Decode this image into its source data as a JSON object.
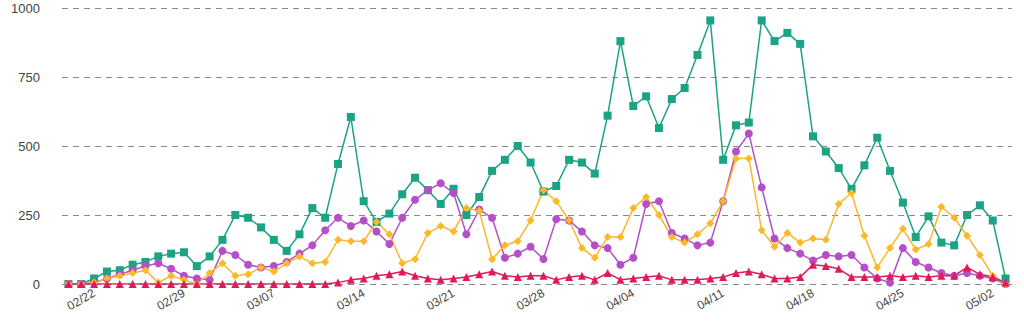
{
  "chart_data": {
    "type": "line",
    "categories": [
      null,
      null,
      "02/22",
      null,
      null,
      null,
      null,
      null,
      null,
      "02/29",
      null,
      null,
      null,
      null,
      null,
      null,
      "03/07",
      null,
      null,
      null,
      null,
      null,
      null,
      "03/14",
      null,
      null,
      null,
      null,
      null,
      null,
      "03/21",
      null,
      null,
      null,
      null,
      null,
      null,
      "03/28",
      null,
      null,
      null,
      null,
      null,
      null,
      "04/04",
      null,
      null,
      null,
      null,
      null,
      null,
      "04/11",
      null,
      null,
      null,
      null,
      null,
      null,
      "04/18",
      null,
      null,
      null,
      null,
      null,
      null,
      "04/25",
      null,
      null,
      null,
      null,
      null,
      null,
      "05/02",
      null
    ],
    "series": [
      {
        "color": "#1aa384",
        "marker": "square",
        "values": [
          0,
          0,
          20,
          45,
          50,
          70,
          80,
          100,
          110,
          115,
          65,
          100,
          160,
          250,
          240,
          205,
          160,
          120,
          180,
          275,
          240,
          435,
          605,
          300,
          225,
          255,
          325,
          385,
          340,
          290,
          345,
          250,
          315,
          410,
          450,
          500,
          440,
          335,
          355,
          450,
          440,
          400,
          610,
          880,
          645,
          680,
          565,
          670,
          710,
          830,
          955,
          450,
          575,
          585,
          955,
          880,
          910,
          870,
          535,
          480,
          420,
          345,
          430,
          530,
          410,
          295,
          170,
          245,
          150,
          140,
          250,
          285,
          230,
          20
        ]
      },
      {
        "color": "#b54fc8",
        "marker": "circle",
        "values": [
          0,
          0,
          5,
          20,
          35,
          50,
          65,
          75,
          55,
          30,
          20,
          15,
          120,
          105,
          70,
          60,
          65,
          80,
          110,
          140,
          195,
          240,
          210,
          230,
          190,
          145,
          240,
          305,
          340,
          365,
          330,
          180,
          270,
          240,
          95,
          110,
          135,
          90,
          235,
          230,
          190,
          140,
          130,
          70,
          95,
          290,
          300,
          185,
          165,
          140,
          150,
          300,
          480,
          545,
          350,
          165,
          130,
          110,
          85,
          105,
          100,
          105,
          60,
          20,
          5,
          130,
          80,
          60,
          40,
          30,
          40,
          30,
          20,
          0
        ]
      },
      {
        "color": "#fbb829",
        "marker": "diamond",
        "values": [
          0,
          0,
          5,
          20,
          30,
          40,
          50,
          5,
          30,
          15,
          0,
          40,
          75,
          30,
          35,
          60,
          45,
          75,
          100,
          75,
          80,
          160,
          155,
          155,
          225,
          180,
          75,
          90,
          185,
          210,
          190,
          275,
          265,
          90,
          140,
          155,
          230,
          340,
          300,
          230,
          130,
          95,
          170,
          170,
          275,
          315,
          250,
          170,
          150,
          180,
          220,
          300,
          455,
          455,
          195,
          135,
          185,
          150,
          165,
          160,
          290,
          330,
          175,
          60,
          130,
          200,
          125,
          145,
          280,
          240,
          175,
          105,
          30,
          0
        ]
      },
      {
        "color": "#e0195a",
        "marker": "triangle",
        "values": [
          0,
          0,
          0,
          0,
          0,
          0,
          0,
          0,
          0,
          0,
          0,
          0,
          0,
          0,
          0,
          0,
          0,
          0,
          0,
          0,
          0,
          5,
          15,
          20,
          30,
          35,
          45,
          30,
          20,
          15,
          20,
          25,
          35,
          45,
          30,
          25,
          30,
          30,
          15,
          25,
          30,
          15,
          40,
          15,
          20,
          25,
          30,
          15,
          15,
          15,
          20,
          25,
          40,
          45,
          35,
          20,
          20,
          25,
          70,
          65,
          55,
          25,
          25,
          25,
          30,
          25,
          30,
          25,
          30,
          30,
          60,
          35,
          25,
          5
        ]
      }
    ],
    "ylim": [
      0,
      1000
    ],
    "yticks": [
      0,
      250,
      500,
      750,
      1000
    ],
    "grid": true
  }
}
